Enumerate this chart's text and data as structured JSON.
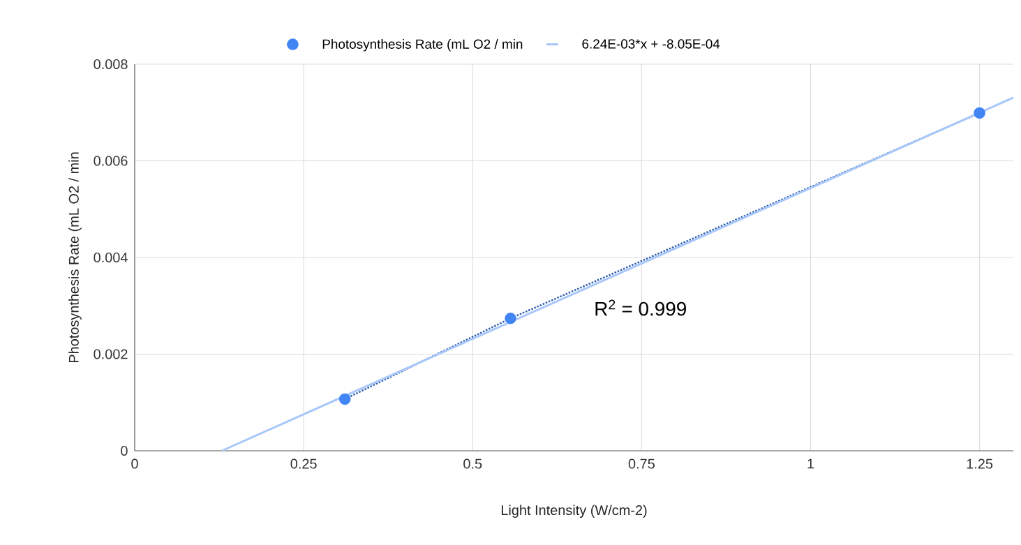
{
  "chart_data": {
    "type": "line",
    "xlabel": "Light Intensity (W/cm-2)",
    "ylabel": "Photosynthesis Rate (mL O2 / min",
    "series": [
      {
        "name": "Photosynthesis Rate (mL O2 / min",
        "color": "#4285f4",
        "x": [
          0.311,
          0.556,
          1.25
        ],
        "values": [
          0.00107,
          0.00274,
          0.00699
        ],
        "marker": "circle",
        "line_style": "dotted"
      },
      {
        "name": "6.24E-03*x + -8.05E-04",
        "color": "#a8c7fa",
        "x": [
          0.129,
          1.3
        ],
        "values": [
          0,
          0.00731
        ],
        "marker": "none",
        "line_style": "solid"
      }
    ],
    "annotations": [
      "R$^{2}$ = 0.999"
    ],
    "xlim": [
      0,
      1.3
    ],
    "ylim": [
      0,
      0.008
    ],
    "xticks": [
      0,
      0.25,
      0.5,
      0.75,
      1,
      1.25
    ],
    "yticks": [
      0,
      0.002,
      0.004,
      0.006,
      0.008
    ],
    "grid": true,
    "legend": "top"
  }
}
